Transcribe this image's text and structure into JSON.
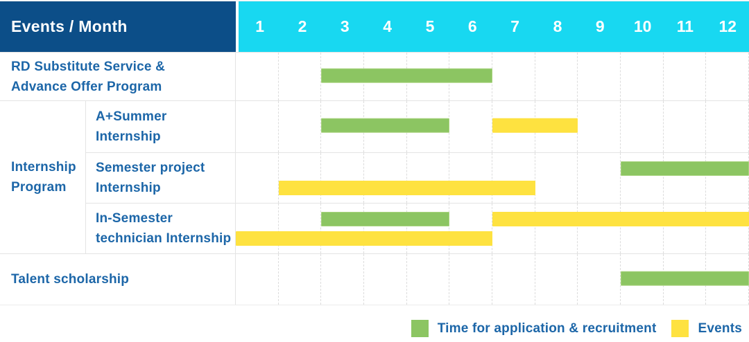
{
  "header": {
    "events_label": "Events / Month",
    "months": [
      "1",
      "2",
      "3",
      "4",
      "5",
      "6",
      "7",
      "8",
      "9",
      "10",
      "11",
      "12"
    ]
  },
  "chart_data": {
    "type": "gantt",
    "unit": "month",
    "month_range": [
      1,
      12
    ],
    "bar_kinds": {
      "application": "Time for application & recruitment",
      "event": "Events"
    },
    "rows": [
      {
        "group": "",
        "label_lines": [
          "RD Substitute Service &",
          "Advance Offer Program"
        ],
        "bars": [
          {
            "kind": "application",
            "start": 3,
            "end": 6,
            "line": 0
          }
        ]
      },
      {
        "group": "Internship Program",
        "label_lines": [
          "A+Summer",
          "Internship"
        ],
        "bars": [
          {
            "kind": "application",
            "start": 3,
            "end": 5,
            "line": 0
          },
          {
            "kind": "event",
            "start": 7,
            "end": 8,
            "line": 0
          }
        ]
      },
      {
        "group": "Internship Program",
        "label_lines": [
          "Semester project",
          "Internship"
        ],
        "bars": [
          {
            "kind": "application",
            "start": 10,
            "end": 12,
            "line": 0
          },
          {
            "kind": "event",
            "start": 2,
            "end": 7,
            "line": 1
          }
        ]
      },
      {
        "group": "Internship Program",
        "label_lines": [
          "In-Semester",
          "technician Internship"
        ],
        "bars": [
          {
            "kind": "application",
            "start": 3,
            "end": 5,
            "line": 0
          },
          {
            "kind": "event",
            "start": 7,
            "end": 12,
            "line": 0
          },
          {
            "kind": "event",
            "start": 1,
            "end": 6,
            "line": 1
          }
        ]
      },
      {
        "group": "",
        "label_lines": [
          "Talent scholarship"
        ],
        "bars": [
          {
            "kind": "application",
            "start": 10,
            "end": 12,
            "line": 0
          }
        ]
      }
    ],
    "group_label_lines": {
      "Internship Program": [
        "Internship",
        "Program"
      ]
    }
  },
  "legend": {
    "items": [
      {
        "kind": "application",
        "label": "Time for application & recruitment"
      },
      {
        "kind": "event",
        "label": "Events"
      }
    ]
  },
  "colors": {
    "header_bg": "#0c4e88",
    "months_bg": "#18d8f1",
    "application_green": "#8cc562",
    "event_yellow": "#fee240",
    "label_text": "#1c66a8",
    "grid_line": "#e4e4e4"
  }
}
